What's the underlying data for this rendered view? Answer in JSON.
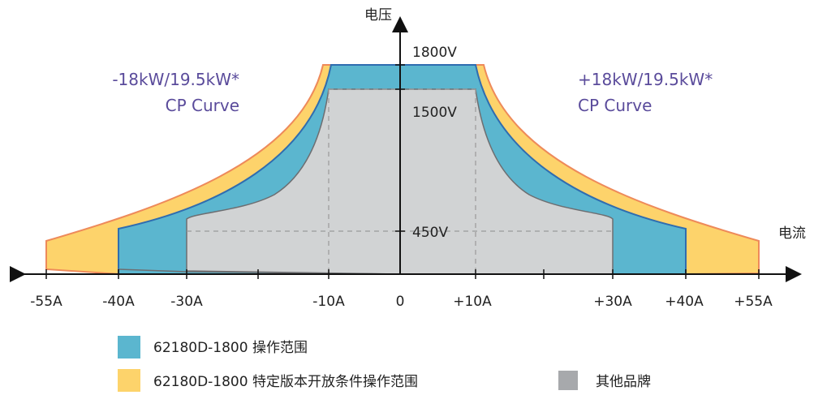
{
  "axes": {
    "y_title": "电压",
    "x_title": "电流"
  },
  "voltage_labels": [
    "1800V",
    "1500V",
    "450V"
  ],
  "current_ticks": [
    "-55A",
    "-40A",
    "-30A",
    "-10A",
    "0",
    "+10A",
    "+30A",
    "+40A",
    "+55A"
  ],
  "cp_left": {
    "line1": "-18kW/19.5kW*",
    "line2": "CP Curve"
  },
  "cp_right": {
    "line1": "+18kW/19.5kW*",
    "line2": "CP Curve"
  },
  "legend": [
    {
      "label": "62180D-1800 操作范围",
      "color": "#5bb6cf"
    },
    {
      "label": "62180D-1800 特定版本开放条件操作范围",
      "color": "#fdd36b"
    },
    {
      "label": "其他品牌",
      "color": "#a7a9ac"
    }
  ],
  "colors": {
    "operating_area": "#5bb6cf",
    "extended_area": "#fdd36b",
    "other_brands": "#d1d3d4",
    "cp_text": "#5a4b9b",
    "outline": "#ee8a5a"
  },
  "chart_data": {
    "type": "area",
    "y_title": "电压",
    "x_title": "电流",
    "series": [
      {
        "name": "62180D-1800 特定版本开放条件操作范围",
        "regions": [
          {
            "current_A": [
              -55,
              55
            ],
            "max_voltage_V": 1800,
            "power_limit_kW": 19.5
          }
        ]
      },
      {
        "name": "62180D-1800 操作范围",
        "regions": [
          {
            "current_A": [
              -40,
              40
            ],
            "max_voltage_V": 1800,
            "power_limit_kW": 18
          }
        ]
      },
      {
        "name": "其他品牌",
        "regions": [
          {
            "current_A": [
              -30,
              30
            ],
            "max_voltage_V": 1500,
            "current_at_450V_A": 30
          }
        ]
      }
    ],
    "voltage_ticks_V": [
      450,
      1500,
      1800
    ],
    "current_ticks_A": [
      -55,
      -40,
      -30,
      -10,
      0,
      10,
      30,
      40,
      55
    ]
  }
}
